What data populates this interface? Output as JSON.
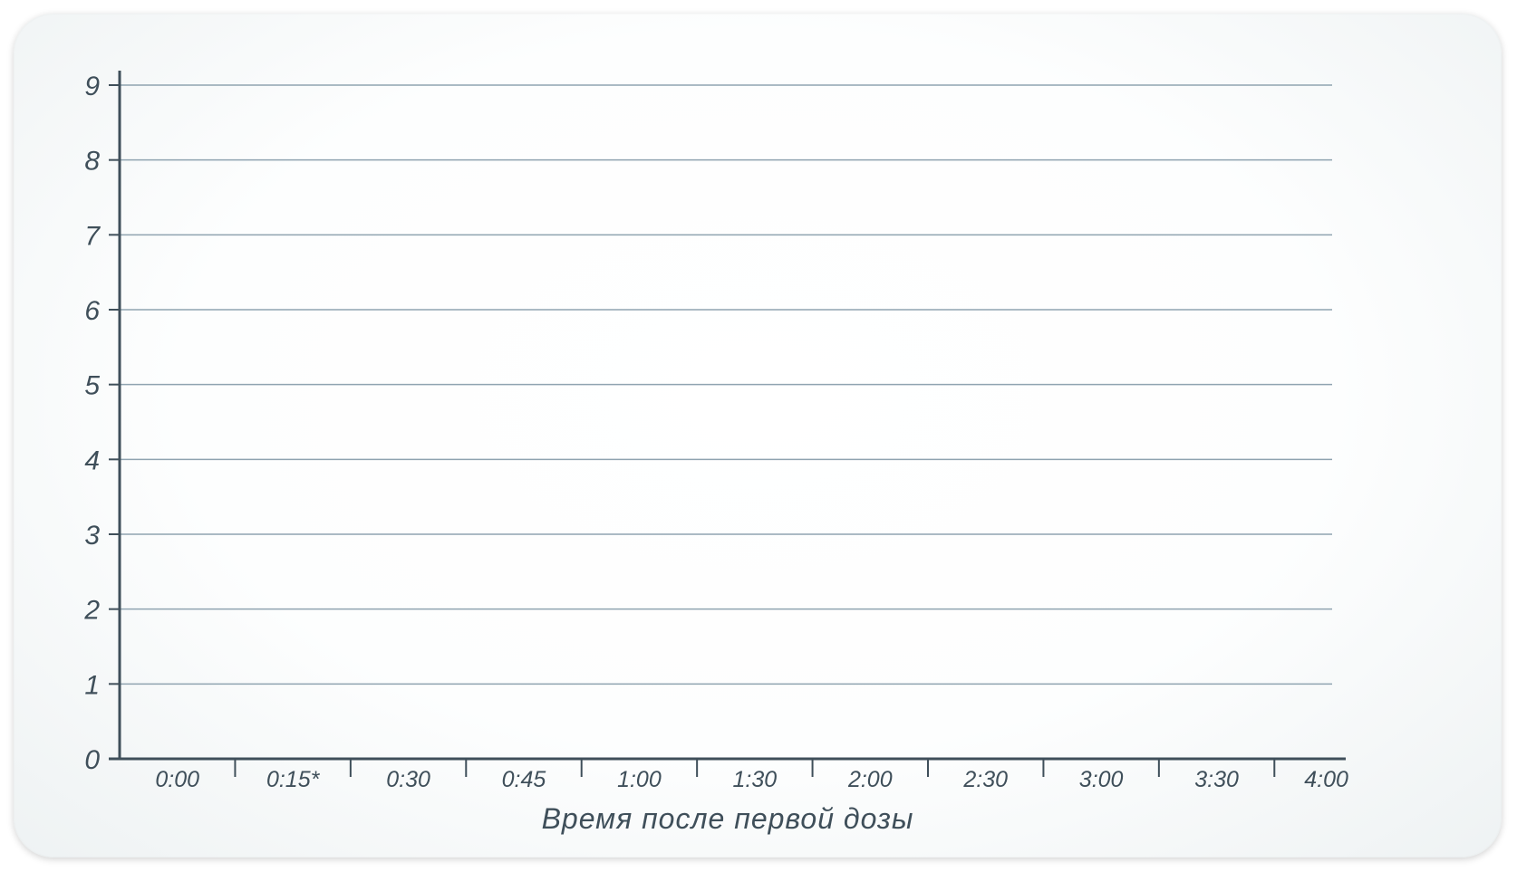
{
  "chart_data": {
    "type": "line",
    "title": "",
    "xlabel": "Время после первой дозы",
    "ylabel": "",
    "categories": [
      "0:00",
      "0:15*",
      "0:30",
      "0:45",
      "1:00",
      "1:30",
      "2:00",
      "2:30",
      "3:00",
      "3:30",
      "4:00"
    ],
    "ylim": [
      0,
      9
    ],
    "yticks": [
      "0",
      "1",
      "2",
      "3",
      "4",
      "5",
      "6",
      "7",
      "8",
      "9"
    ],
    "series": [],
    "grid": true,
    "legend": "none"
  },
  "colors": {
    "axis": "#3f4f5a",
    "grid": "#8fa3b0",
    "text": "#3f4f5a",
    "background": "#ffffff"
  }
}
